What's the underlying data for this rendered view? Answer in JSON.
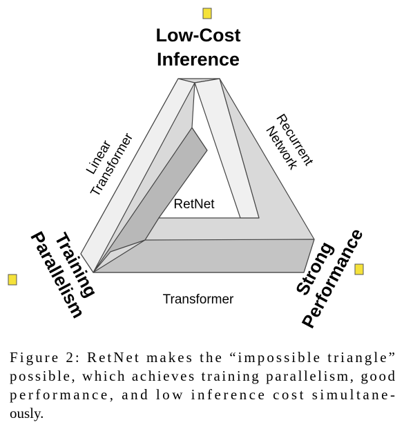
{
  "figure": {
    "vertices": {
      "top": [
        "Low-Cost",
        "Inference"
      ],
      "left": [
        "Training",
        "Parallelism"
      ],
      "right": [
        "Strong",
        "Performance"
      ]
    },
    "edges": {
      "left": [
        "Linear",
        "Transformer"
      ],
      "right": [
        "Recurrent",
        "Network"
      ],
      "bottom": "Transformer"
    },
    "center": "RetNet",
    "caption": [
      "Figure 2: RetNet makes the “impossible triangle”",
      "possible, which achieves training parallelism, good",
      "performance, and low inference cost simultane-",
      "ously."
    ]
  }
}
